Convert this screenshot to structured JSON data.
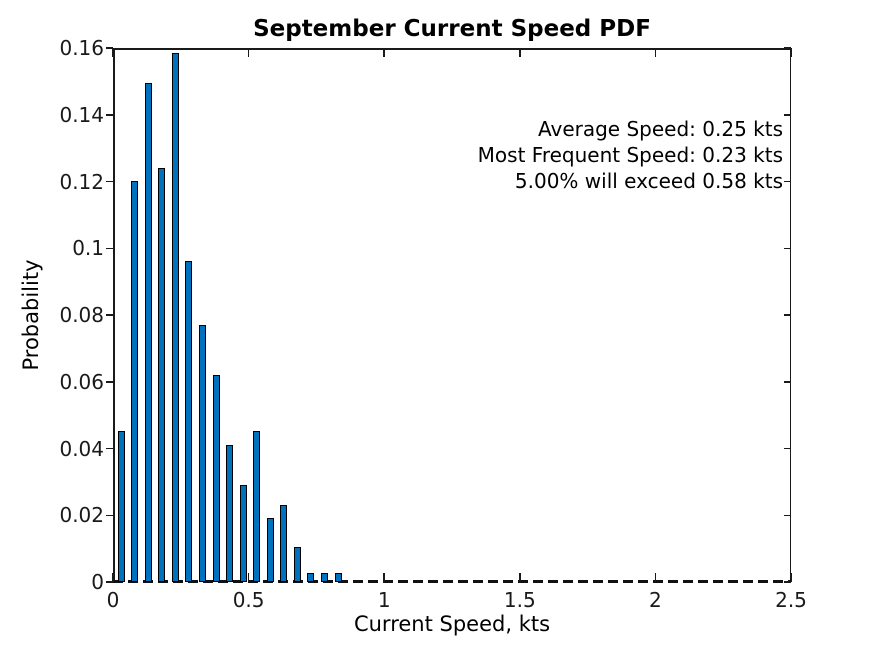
{
  "chart_data": {
    "type": "bar",
    "title": "September Current Speed PDF",
    "xlabel": "Current Speed, kts",
    "ylabel": "Probability",
    "xlim": [
      0,
      2.5
    ],
    "ylim": [
      0,
      0.16
    ],
    "grid": false,
    "legend": "none",
    "bin_width_kts": 0.05,
    "bar_display_width_kts": 0.025,
    "x": [
      0.03,
      0.08,
      0.13,
      0.18,
      0.23,
      0.28,
      0.33,
      0.38,
      0.43,
      0.48,
      0.53,
      0.58,
      0.63,
      0.68,
      0.73,
      0.78,
      0.83
    ],
    "values": [
      0.0445,
      0.1195,
      0.149,
      0.1235,
      0.158,
      0.0955,
      0.0765,
      0.0615,
      0.0405,
      0.0285,
      0.0445,
      0.0185,
      0.0225,
      0.01,
      0.002,
      0.002,
      0.002
    ],
    "xticks": {
      "values": [
        0,
        0.5,
        1,
        1.5,
        2,
        2.5
      ],
      "labels": [
        "0",
        "0.5",
        "1",
        "1.5",
        "2",
        "2.5"
      ]
    },
    "yticks": {
      "values": [
        0,
        0.02,
        0.04,
        0.06,
        0.08,
        0.1,
        0.12,
        0.14,
        0.16
      ],
      "labels": [
        "0",
        "0.02",
        "0.04",
        "0.06",
        "0.08",
        "0.1",
        "0.12",
        "0.14",
        "0.16"
      ]
    },
    "zero_line_style": "dashed",
    "annotations": [
      "Average Speed: 0.25 kts",
      "Most Frequent Speed: 0.23 kts",
      "5.00% will exceed 0.58 kts"
    ],
    "colors": {
      "bar_fill": "#0072BD",
      "bar_edge": "#000000",
      "axis": "#1a1a1a",
      "text": "#000000",
      "background": "#ffffff"
    }
  }
}
